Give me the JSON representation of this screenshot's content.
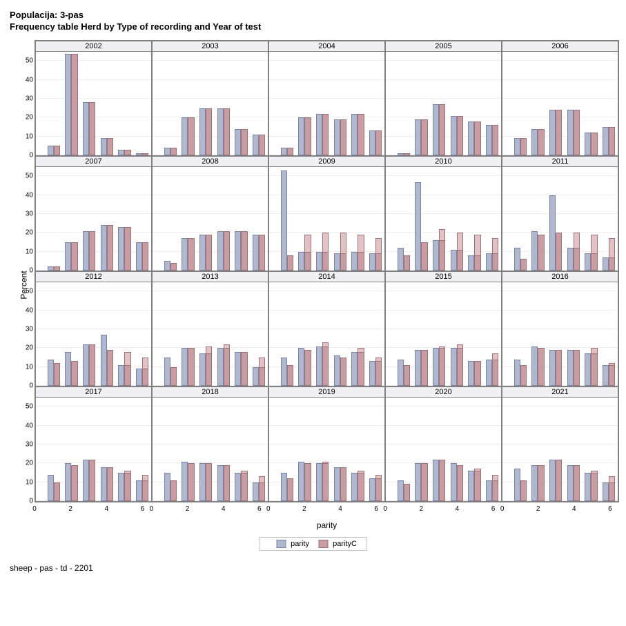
{
  "title_line1": "Populacija: 3-pas",
  "title_line2": "Frequency table Herd by Type of recording and Year of test",
  "y_label": "Percent",
  "x_label": "parity",
  "footer": "sheep - pas - td - 2201",
  "legend": {
    "series1": "parity",
    "series2": "parityC"
  },
  "style": {
    "parity_fill": "#b0b8d0",
    "parity_stroke": "#7a84a8",
    "parityC_fill": "#c89ca0",
    "parityC_stroke": "#9c7276",
    "parityC_light": "#e3c2c5",
    "ymax": 55,
    "yticks": [
      0,
      10,
      20,
      30,
      40,
      50
    ],
    "xticks": [
      0,
      2,
      4,
      6
    ],
    "bar_half_width_pct": 5.5,
    "grid_color": "#eeeeee",
    "panel_border": "#808080",
    "header_bg": "#f0f0f4"
  },
  "panels": [
    {
      "year": "2002",
      "row": 0,
      "bars": [
        {
          "x": 1,
          "p": 5,
          "c": 5
        },
        {
          "x": 2,
          "p": 54,
          "c": 54
        },
        {
          "x": 3,
          "p": 28,
          "c": 28
        },
        {
          "x": 4,
          "p": 9,
          "c": 9
        },
        {
          "x": 5,
          "p": 3,
          "c": 3
        },
        {
          "x": 6,
          "p": 1,
          "c": 1
        }
      ]
    },
    {
      "year": "2003",
      "row": 0,
      "bars": [
        {
          "x": 1,
          "p": 4,
          "c": 4
        },
        {
          "x": 2,
          "p": 20,
          "c": 20
        },
        {
          "x": 3,
          "p": 25,
          "c": 25
        },
        {
          "x": 4,
          "p": 25,
          "c": 25
        },
        {
          "x": 5,
          "p": 14,
          "c": 14
        },
        {
          "x": 6,
          "p": 11,
          "c": 11
        }
      ]
    },
    {
      "year": "2004",
      "row": 0,
      "bars": [
        {
          "x": 1,
          "p": 4,
          "c": 4
        },
        {
          "x": 2,
          "p": 20,
          "c": 20
        },
        {
          "x": 3,
          "p": 22,
          "c": 22
        },
        {
          "x": 4,
          "p": 19,
          "c": 19
        },
        {
          "x": 5,
          "p": 22,
          "c": 22
        },
        {
          "x": 6,
          "p": 13,
          "c": 13
        }
      ]
    },
    {
      "year": "2005",
      "row": 0,
      "bars": [
        {
          "x": 1,
          "p": 1,
          "c": 1
        },
        {
          "x": 2,
          "p": 19,
          "c": 19
        },
        {
          "x": 3,
          "p": 27,
          "c": 27
        },
        {
          "x": 4,
          "p": 21,
          "c": 21
        },
        {
          "x": 5,
          "p": 18,
          "c": 18
        },
        {
          "x": 6,
          "p": 16,
          "c": 16
        }
      ]
    },
    {
      "year": "2006",
      "row": 0,
      "bars": [
        {
          "x": 1,
          "p": 9,
          "c": 9
        },
        {
          "x": 2,
          "p": 14,
          "c": 14
        },
        {
          "x": 3,
          "p": 24,
          "c": 24
        },
        {
          "x": 4,
          "p": 24,
          "c": 24
        },
        {
          "x": 5,
          "p": 12,
          "c": 12
        },
        {
          "x": 6,
          "p": 15,
          "c": 15
        }
      ]
    },
    {
      "year": "2007",
      "row": 1,
      "bars": [
        {
          "x": 1,
          "p": 2,
          "c": 2
        },
        {
          "x": 2,
          "p": 15,
          "c": 15
        },
        {
          "x": 3,
          "p": 21,
          "c": 21
        },
        {
          "x": 4,
          "p": 24,
          "c": 24
        },
        {
          "x": 5,
          "p": 23,
          "c": 23
        },
        {
          "x": 6,
          "p": 15,
          "c": 15
        }
      ]
    },
    {
      "year": "2008",
      "row": 1,
      "bars": [
        {
          "x": 1,
          "p": 5,
          "c": 4
        },
        {
          "x": 2,
          "p": 17,
          "c": 17
        },
        {
          "x": 3,
          "p": 19,
          "c": 19
        },
        {
          "x": 4,
          "p": 21,
          "c": 21
        },
        {
          "x": 5,
          "p": 21,
          "c": 21
        },
        {
          "x": 6,
          "p": 19,
          "c": 19
        }
      ]
    },
    {
      "year": "2009",
      "row": 1,
      "bars": [
        {
          "x": 1,
          "p": 53,
          "c": 8
        },
        {
          "x": 2,
          "p": 10,
          "c": 19
        },
        {
          "x": 3,
          "p": 10,
          "c": 20
        },
        {
          "x": 4,
          "p": 9,
          "c": 20
        },
        {
          "x": 5,
          "p": 10,
          "c": 19
        },
        {
          "x": 6,
          "p": 9,
          "c": 17
        }
      ]
    },
    {
      "year": "2010",
      "row": 1,
      "bars": [
        {
          "x": 1,
          "p": 12,
          "c": 8
        },
        {
          "x": 2,
          "p": 47,
          "c": 15
        },
        {
          "x": 3,
          "p": 16,
          "c": 22
        },
        {
          "x": 4,
          "p": 11,
          "c": 20
        },
        {
          "x": 5,
          "p": 8,
          "c": 19
        },
        {
          "x": 6,
          "p": 9,
          "c": 17
        }
      ]
    },
    {
      "year": "2011",
      "row": 1,
      "bars": [
        {
          "x": 1,
          "p": 12,
          "c": 6
        },
        {
          "x": 2,
          "p": 21,
          "c": 19
        },
        {
          "x": 3,
          "p": 40,
          "c": 20
        },
        {
          "x": 4,
          "p": 12,
          "c": 20
        },
        {
          "x": 5,
          "p": 9,
          "c": 19
        },
        {
          "x": 6,
          "p": 7,
          "c": 17
        }
      ]
    },
    {
      "year": "2012",
      "row": 2,
      "bars": [
        {
          "x": 1,
          "p": 14,
          "c": 12
        },
        {
          "x": 2,
          "p": 18,
          "c": 13
        },
        {
          "x": 3,
          "p": 22,
          "c": 22
        },
        {
          "x": 4,
          "p": 27,
          "c": 19
        },
        {
          "x": 5,
          "p": 11,
          "c": 18
        },
        {
          "x": 6,
          "p": 9,
          "c": 15
        }
      ]
    },
    {
      "year": "2013",
      "row": 2,
      "bars": [
        {
          "x": 1,
          "p": 15,
          "c": 10
        },
        {
          "x": 2,
          "p": 20,
          "c": 20
        },
        {
          "x": 3,
          "p": 17,
          "c": 21
        },
        {
          "x": 4,
          "p": 20,
          "c": 22
        },
        {
          "x": 5,
          "p": 18,
          "c": 18
        },
        {
          "x": 6,
          "p": 10,
          "c": 15
        }
      ]
    },
    {
      "year": "2014",
      "row": 2,
      "bars": [
        {
          "x": 1,
          "p": 15,
          "c": 11
        },
        {
          "x": 2,
          "p": 20,
          "c": 19
        },
        {
          "x": 3,
          "p": 21,
          "c": 23
        },
        {
          "x": 4,
          "p": 16,
          "c": 15
        },
        {
          "x": 5,
          "p": 18,
          "c": 20
        },
        {
          "x": 6,
          "p": 13,
          "c": 15
        }
      ]
    },
    {
      "year": "2015",
      "row": 2,
      "bars": [
        {
          "x": 1,
          "p": 14,
          "c": 11
        },
        {
          "x": 2,
          "p": 19,
          "c": 19
        },
        {
          "x": 3,
          "p": 20,
          "c": 21
        },
        {
          "x": 4,
          "p": 20,
          "c": 22
        },
        {
          "x": 5,
          "p": 13,
          "c": 13
        },
        {
          "x": 6,
          "p": 14,
          "c": 17
        }
      ]
    },
    {
      "year": "2016",
      "row": 2,
      "bars": [
        {
          "x": 1,
          "p": 14,
          "c": 11
        },
        {
          "x": 2,
          "p": 21,
          "c": 20
        },
        {
          "x": 3,
          "p": 19,
          "c": 19
        },
        {
          "x": 4,
          "p": 19,
          "c": 19
        },
        {
          "x": 5,
          "p": 17,
          "c": 20
        },
        {
          "x": 6,
          "p": 11,
          "c": 12
        }
      ]
    },
    {
      "year": "2017",
      "row": 3,
      "bars": [
        {
          "x": 1,
          "p": 14,
          "c": 10
        },
        {
          "x": 2,
          "p": 20,
          "c": 19
        },
        {
          "x": 3,
          "p": 22,
          "c": 22
        },
        {
          "x": 4,
          "p": 18,
          "c": 18
        },
        {
          "x": 5,
          "p": 15,
          "c": 16
        },
        {
          "x": 6,
          "p": 11,
          "c": 14
        }
      ]
    },
    {
      "year": "2018",
      "row": 3,
      "bars": [
        {
          "x": 1,
          "p": 15,
          "c": 11
        },
        {
          "x": 2,
          "p": 21,
          "c": 20
        },
        {
          "x": 3,
          "p": 20,
          "c": 20
        },
        {
          "x": 4,
          "p": 19,
          "c": 19
        },
        {
          "x": 5,
          "p": 15,
          "c": 16
        },
        {
          "x": 6,
          "p": 10,
          "c": 13
        }
      ]
    },
    {
      "year": "2019",
      "row": 3,
      "bars": [
        {
          "x": 1,
          "p": 15,
          "c": 12
        },
        {
          "x": 2,
          "p": 21,
          "c": 20
        },
        {
          "x": 3,
          "p": 20,
          "c": 21
        },
        {
          "x": 4,
          "p": 18,
          "c": 18
        },
        {
          "x": 5,
          "p": 15,
          "c": 16
        },
        {
          "x": 6,
          "p": 12,
          "c": 14
        }
      ]
    },
    {
      "year": "2020",
      "row": 3,
      "bars": [
        {
          "x": 1,
          "p": 11,
          "c": 9
        },
        {
          "x": 2,
          "p": 20,
          "c": 20
        },
        {
          "x": 3,
          "p": 22,
          "c": 22
        },
        {
          "x": 4,
          "p": 20,
          "c": 19
        },
        {
          "x": 5,
          "p": 16,
          "c": 17
        },
        {
          "x": 6,
          "p": 11,
          "c": 14
        }
      ]
    },
    {
      "year": "2021",
      "row": 3,
      "bars": [
        {
          "x": 1,
          "p": 17,
          "c": 11
        },
        {
          "x": 2,
          "p": 19,
          "c": 19
        },
        {
          "x": 3,
          "p": 22,
          "c": 22
        },
        {
          "x": 4,
          "p": 19,
          "c": 19
        },
        {
          "x": 5,
          "p": 15,
          "c": 16
        },
        {
          "x": 6,
          "p": 10,
          "c": 13
        }
      ]
    }
  ]
}
